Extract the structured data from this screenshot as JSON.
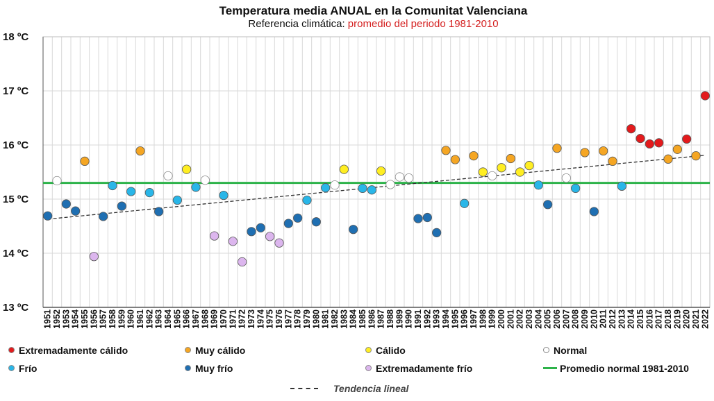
{
  "title": "Temperatura media ANUAL en la Comunitat Valenciana",
  "subtitle_prefix": "Referencia climática:",
  "subtitle_accent": "promedio del periodo 1981-2010",
  "colors": {
    "extremadamente_calido": "#e31a1c",
    "muy_calido": "#f5a623",
    "calido": "#ffee22",
    "normal": "#ffffff",
    "frio": "#29b6e8",
    "muy_frio": "#1f6fb2",
    "extremadamente_frio": "#dcb6ee",
    "normal_line": "#2db34a",
    "trend_line": "#333333",
    "grid": "#d9d9d9"
  },
  "legend": [
    {
      "key": "extremadamente_calido",
      "label": "Extremadamente cálido"
    },
    {
      "key": "muy_calido",
      "label": "Muy cálido"
    },
    {
      "key": "calido",
      "label": "Cálido"
    },
    {
      "key": "normal",
      "label": "Normal"
    },
    {
      "key": "frio",
      "label": "Frío"
    },
    {
      "key": "muy_frio",
      "label": "Muy frío"
    },
    {
      "key": "extremadamente_frio",
      "label": "Extremadamente frío"
    },
    {
      "key": "normal_line",
      "label": "Promedio normal 1981-2010",
      "line": true
    }
  ],
  "trend_label": "Tendencia lineal",
  "chart_data": {
    "type": "scatter",
    "ylim": [
      13,
      18
    ],
    "yticks": [
      13,
      14,
      15,
      16,
      17,
      18
    ],
    "ytick_labels": [
      "13 ºC",
      "14 ºC",
      "15 ºC",
      "16 ºC",
      "17 ºC",
      "18 ºC"
    ],
    "x_range": [
      1951,
      2022
    ],
    "normal_value": 15.3,
    "trend": {
      "start": [
        1951,
        14.63
      ],
      "end": [
        2022,
        15.81
      ]
    },
    "points": [
      {
        "year": 1951,
        "value": 14.69,
        "category": "muy_frio"
      },
      {
        "year": 1952,
        "value": 15.34,
        "category": "normal"
      },
      {
        "year": 1953,
        "value": 14.91,
        "category": "muy_frio"
      },
      {
        "year": 1954,
        "value": 14.78,
        "category": "muy_frio"
      },
      {
        "year": 1955,
        "value": 15.7,
        "category": "muy_calido"
      },
      {
        "year": 1956,
        "value": 13.94,
        "category": "extremadamente_frio"
      },
      {
        "year": 1957,
        "value": 14.68,
        "category": "muy_frio"
      },
      {
        "year": 1958,
        "value": 15.25,
        "category": "frio"
      },
      {
        "year": 1959,
        "value": 14.87,
        "category": "muy_frio"
      },
      {
        "year": 1960,
        "value": 15.14,
        "category": "frio"
      },
      {
        "year": 1961,
        "value": 15.89,
        "category": "muy_calido"
      },
      {
        "year": 1962,
        "value": 15.12,
        "category": "frio"
      },
      {
        "year": 1963,
        "value": 14.77,
        "category": "muy_frio"
      },
      {
        "year": 1964,
        "value": 15.43,
        "category": "normal"
      },
      {
        "year": 1965,
        "value": 14.98,
        "category": "frio"
      },
      {
        "year": 1966,
        "value": 15.55,
        "category": "calido"
      },
      {
        "year": 1967,
        "value": 15.22,
        "category": "frio"
      },
      {
        "year": 1968,
        "value": 15.35,
        "category": "normal"
      },
      {
        "year": 1969,
        "value": 14.32,
        "category": "extremadamente_frio"
      },
      {
        "year": 1970,
        "value": 15.07,
        "category": "frio"
      },
      {
        "year": 1971,
        "value": 14.22,
        "category": "extremadamente_frio"
      },
      {
        "year": 1972,
        "value": 13.84,
        "category": "extremadamente_frio"
      },
      {
        "year": 1973,
        "value": 14.4,
        "category": "muy_frio"
      },
      {
        "year": 1974,
        "value": 14.47,
        "category": "muy_frio"
      },
      {
        "year": 1975,
        "value": 14.31,
        "category": "extremadamente_frio"
      },
      {
        "year": 1976,
        "value": 14.19,
        "category": "extremadamente_frio"
      },
      {
        "year": 1977,
        "value": 14.55,
        "category": "muy_frio"
      },
      {
        "year": 1978,
        "value": 14.65,
        "category": "muy_frio"
      },
      {
        "year": 1979,
        "value": 14.98,
        "category": "frio"
      },
      {
        "year": 1980,
        "value": 14.58,
        "category": "muy_frio"
      },
      {
        "year": 1981,
        "value": 15.21,
        "category": "frio"
      },
      {
        "year": 1982,
        "value": 15.26,
        "category": "normal"
      },
      {
        "year": 1983,
        "value": 15.55,
        "category": "calido"
      },
      {
        "year": 1984,
        "value": 14.44,
        "category": "muy_frio"
      },
      {
        "year": 1985,
        "value": 15.2,
        "category": "frio"
      },
      {
        "year": 1986,
        "value": 15.17,
        "category": "frio"
      },
      {
        "year": 1987,
        "value": 15.52,
        "category": "calido"
      },
      {
        "year": 1988,
        "value": 15.27,
        "category": "normal"
      },
      {
        "year": 1989,
        "value": 15.41,
        "category": "normal"
      },
      {
        "year": 1990,
        "value": 15.39,
        "category": "normal"
      },
      {
        "year": 1991,
        "value": 14.64,
        "category": "muy_frio"
      },
      {
        "year": 1992,
        "value": 14.66,
        "category": "muy_frio"
      },
      {
        "year": 1993,
        "value": 14.38,
        "category": "muy_frio"
      },
      {
        "year": 1994,
        "value": 15.9,
        "category": "muy_calido"
      },
      {
        "year": 1995,
        "value": 15.73,
        "category": "muy_calido"
      },
      {
        "year": 1996,
        "value": 14.92,
        "category": "frio"
      },
      {
        "year": 1997,
        "value": 15.8,
        "category": "muy_calido"
      },
      {
        "year": 1998,
        "value": 15.5,
        "category": "calido"
      },
      {
        "year": 1999,
        "value": 15.43,
        "category": "normal"
      },
      {
        "year": 2000,
        "value": 15.58,
        "category": "calido"
      },
      {
        "year": 2001,
        "value": 15.75,
        "category": "muy_calido"
      },
      {
        "year": 2002,
        "value": 15.5,
        "category": "calido"
      },
      {
        "year": 2003,
        "value": 15.62,
        "category": "calido"
      },
      {
        "year": 2004,
        "value": 15.26,
        "category": "frio"
      },
      {
        "year": 2005,
        "value": 14.9,
        "category": "muy_frio"
      },
      {
        "year": 2006,
        "value": 15.94,
        "category": "muy_calido"
      },
      {
        "year": 2007,
        "value": 15.39,
        "category": "normal"
      },
      {
        "year": 2008,
        "value": 15.2,
        "category": "frio"
      },
      {
        "year": 2009,
        "value": 15.86,
        "category": "muy_calido"
      },
      {
        "year": 2010,
        "value": 14.77,
        "category": "muy_frio"
      },
      {
        "year": 2011,
        "value": 15.89,
        "category": "muy_calido"
      },
      {
        "year": 2012,
        "value": 15.7,
        "category": "muy_calido"
      },
      {
        "year": 2013,
        "value": 15.24,
        "category": "frio"
      },
      {
        "year": 2014,
        "value": 16.3,
        "category": "extremadamente_calido"
      },
      {
        "year": 2015,
        "value": 16.12,
        "category": "extremadamente_calido"
      },
      {
        "year": 2016,
        "value": 16.02,
        "category": "extremadamente_calido"
      },
      {
        "year": 2017,
        "value": 16.04,
        "category": "extremadamente_calido"
      },
      {
        "year": 2018,
        "value": 15.74,
        "category": "muy_calido"
      },
      {
        "year": 2019,
        "value": 15.92,
        "category": "muy_calido"
      },
      {
        "year": 2020,
        "value": 16.11,
        "category": "extremadamente_calido"
      },
      {
        "year": 2021,
        "value": 15.8,
        "category": "muy_calido"
      },
      {
        "year": 2022,
        "value": 16.91,
        "category": "extremadamente_calido"
      }
    ]
  }
}
